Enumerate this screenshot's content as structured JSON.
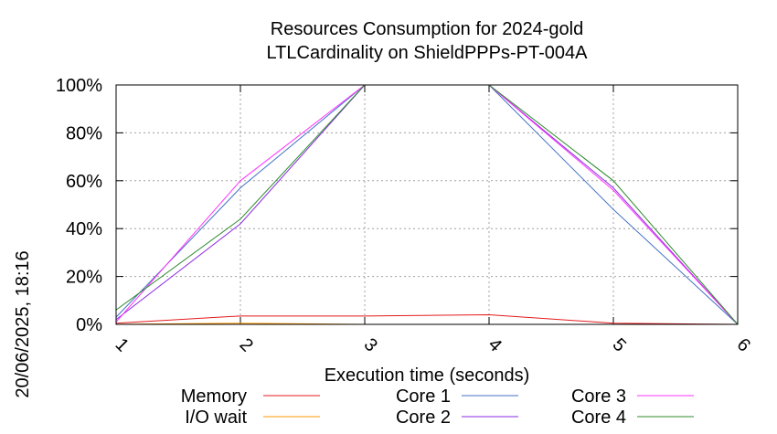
{
  "chart_data": {
    "type": "line",
    "title": "Resources Consumption for 2024-gold",
    "subtitle": "LTLCardinality on ShieldPPPs-PT-004A",
    "xlabel": "Execution time (seconds)",
    "ylabel": "",
    "side_label": "20/06/2025, 18:16",
    "x": [
      1,
      2,
      3,
      4,
      5,
      6
    ],
    "x_tick_labels": [
      "1",
      "2",
      "3",
      "4",
      "5",
      "6"
    ],
    "y_tick_labels": [
      "0%",
      "20%",
      "40%",
      "60%",
      "80%",
      "100%"
    ],
    "xlim": [
      1,
      6
    ],
    "ylim": [
      0,
      100
    ],
    "grid": true,
    "legend_position": "bottom",
    "series": [
      {
        "name": "Memory",
        "color": "#e41a1c",
        "values": [
          0.5,
          3.5,
          3.5,
          4,
          0.5,
          0
        ]
      },
      {
        "name": "I/O wait",
        "color": "#ff9900",
        "values": [
          0,
          0.5,
          0,
          0,
          0,
          0
        ]
      },
      {
        "name": "Core 1",
        "color": "#4472c4",
        "values": [
          3,
          57,
          100,
          100,
          48,
          0
        ]
      },
      {
        "name": "Core 2",
        "color": "#8a2be2",
        "values": [
          2,
          42,
          100,
          100,
          57,
          0
        ]
      },
      {
        "name": "Core 3",
        "color": "#ff33ff",
        "values": [
          1,
          60,
          100,
          100,
          56,
          0
        ]
      },
      {
        "name": "Core 4",
        "color": "#2e8b2e",
        "values": [
          6,
          44,
          100,
          100,
          60,
          0
        ]
      }
    ]
  }
}
